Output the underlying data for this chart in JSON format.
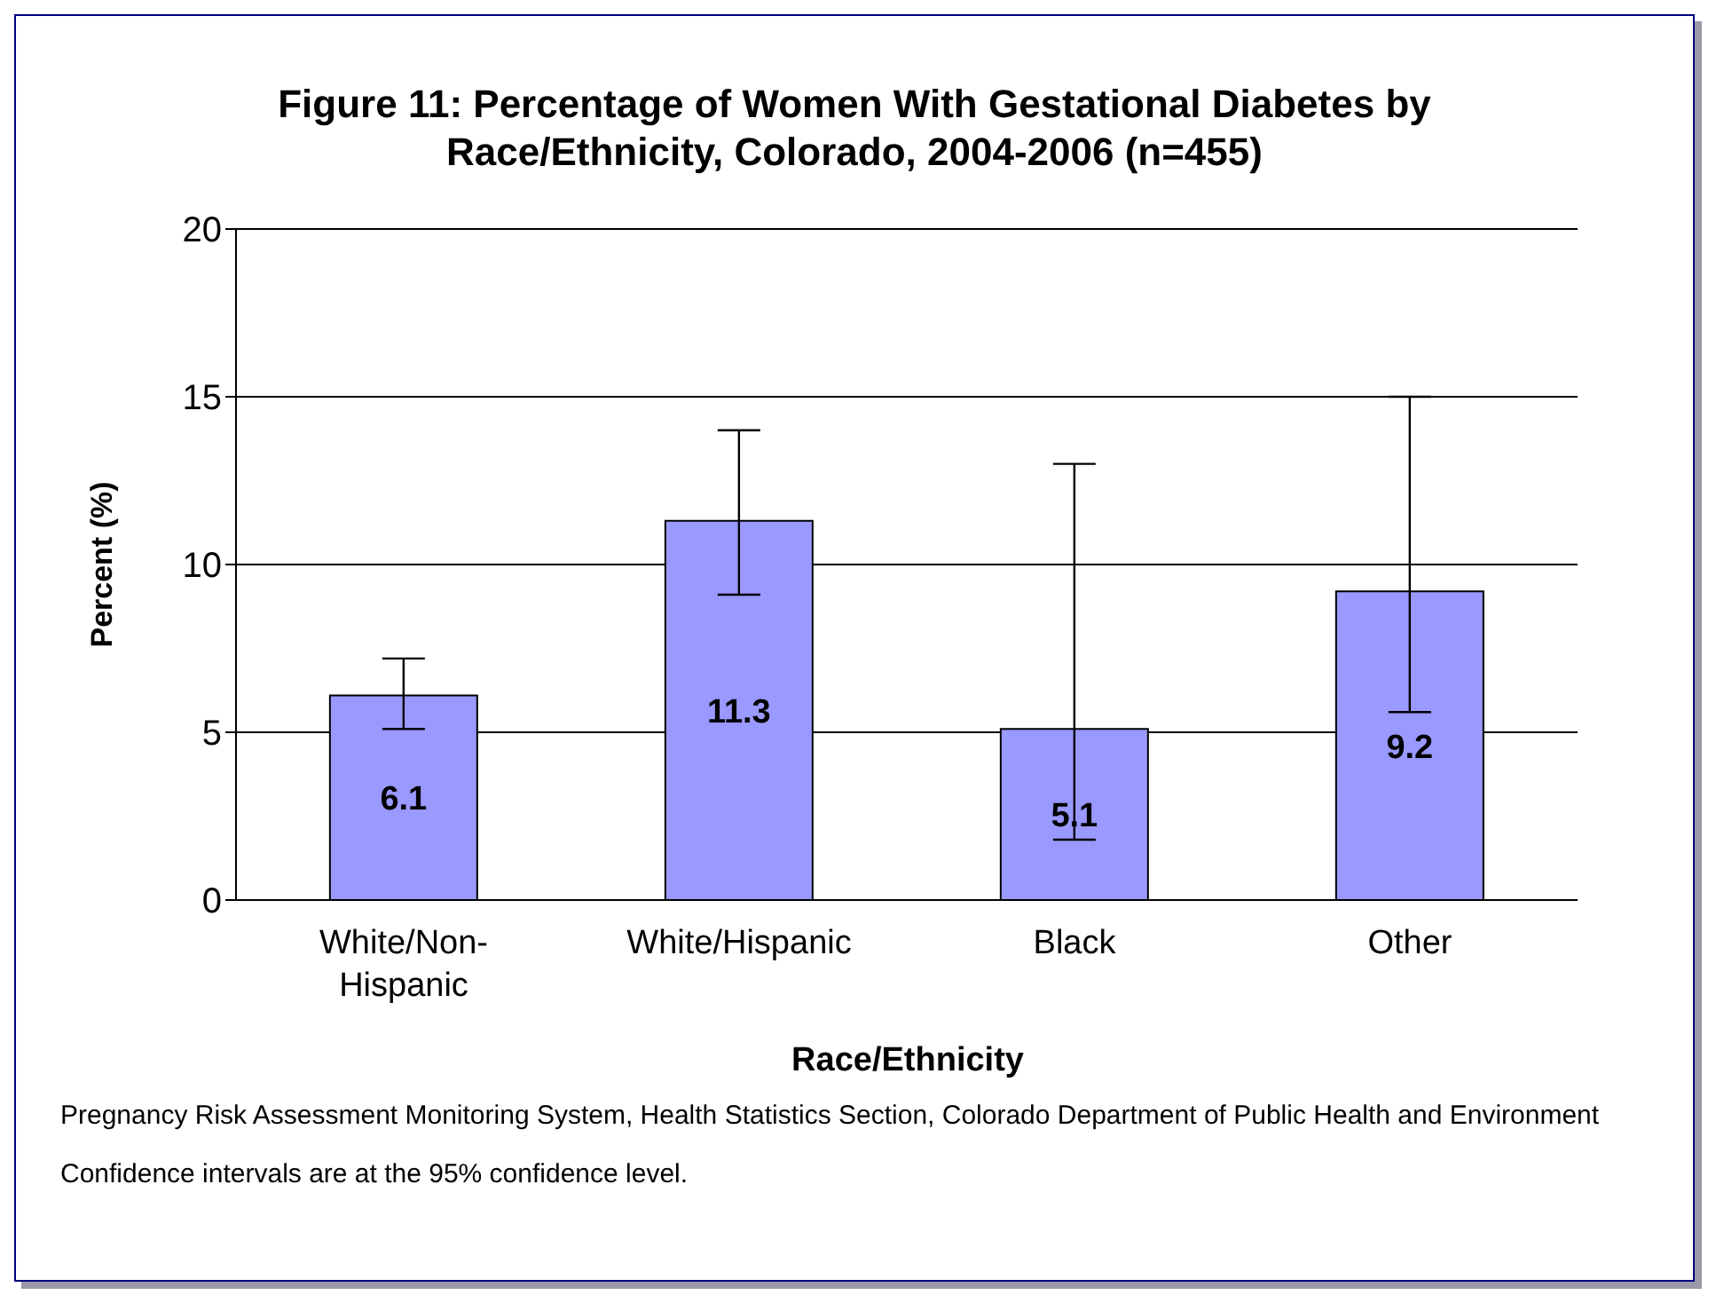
{
  "chart_data": {
    "type": "bar",
    "title": "Figure 11: Percentage of Women With Gestational Diabetes by Race/Ethnicity, Colorado, 2004-2006 (n=455)",
    "xlabel": "Race/Ethnicity",
    "ylabel": "Percent (%)",
    "categories": [
      "White/Non-Hispanic",
      "White/Hispanic",
      "Black",
      "Other"
    ],
    "values": [
      6.1,
      11.3,
      5.1,
      9.2
    ],
    "errors": [
      [
        5.1,
        7.2
      ],
      [
        9.1,
        14.0
      ],
      [
        1.8,
        13.0
      ],
      [
        5.6,
        15.0
      ]
    ],
    "color": "#9999ff",
    "ylim": [
      0,
      20
    ],
    "yticks": [
      0,
      5,
      10,
      15,
      20
    ],
    "grid": "y",
    "data_labels": true,
    "legend": false,
    "annotations": [
      "Pregnancy Risk Assessment Monitoring System, Health Statistics Section, Colorado Department of Public Health and Environment",
      "Confidence intervals are at the 95% confidence level."
    ]
  }
}
